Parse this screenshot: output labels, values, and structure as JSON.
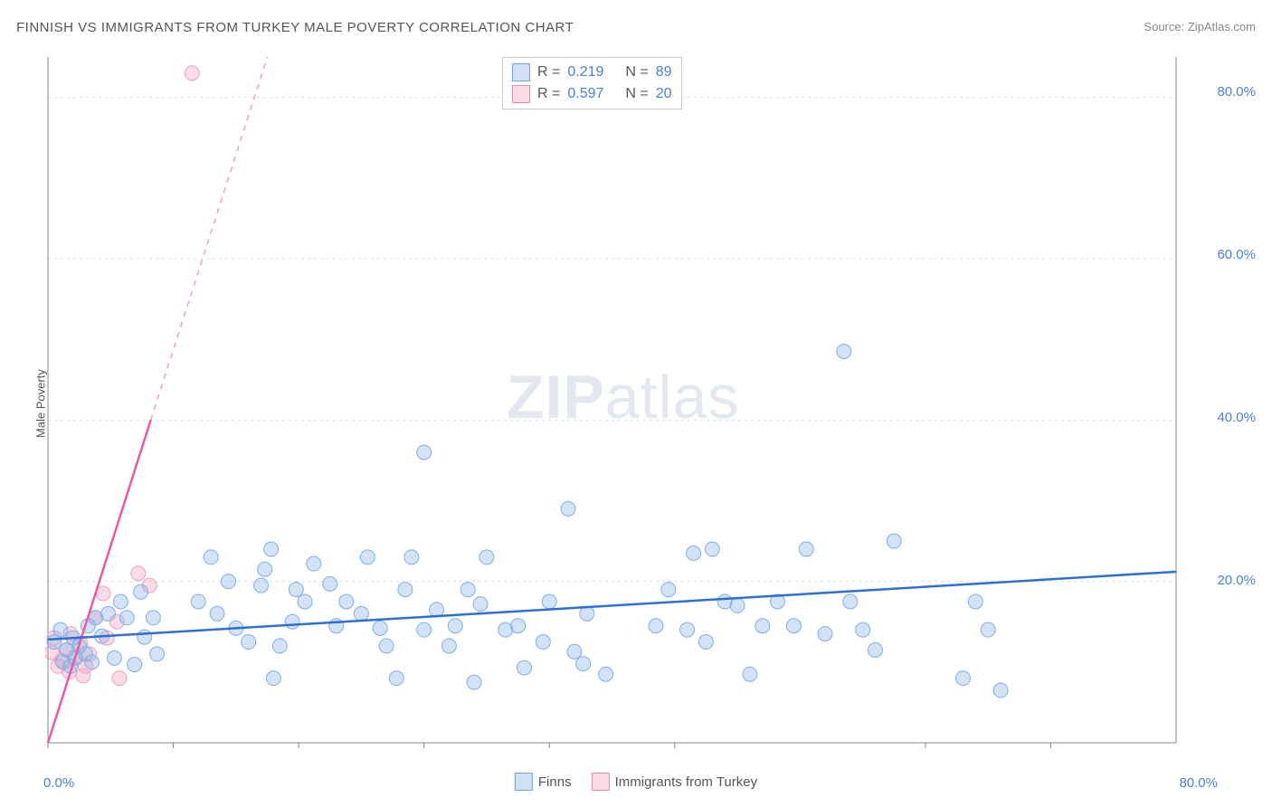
{
  "title": "FINNISH VS IMMIGRANTS FROM TURKEY MALE POVERTY CORRELATION CHART",
  "source_label": "Source:",
  "source_name": "ZipAtlas.com",
  "watermark_a": "ZIP",
  "watermark_b": "atlas",
  "y_axis_label": "Male Poverty",
  "chart": {
    "type": "scatter",
    "background_color": "#ffffff",
    "grid_color": "#dcdcdc",
    "axis_line_color": "#888888",
    "xlim": [
      0,
      90
    ],
    "ylim": [
      0,
      85
    ],
    "x_ticks": [
      0,
      10,
      20,
      30,
      40,
      50,
      70,
      80
    ],
    "x_tick_labels": {
      "0": "0.0%",
      "80": "80.0%"
    },
    "y_ticks": [
      20,
      40,
      60,
      80
    ],
    "y_tick_labels": {
      "20": "20.0%",
      "40": "40.0%",
      "60": "60.0%",
      "80": "80.0%"
    },
    "series": [
      {
        "name": "Finns",
        "color_fill": "rgba(140,180,230,0.38)",
        "color_stroke": "#7fb0e8",
        "marker_radius": 8,
        "trend_color": "#2d6fd6",
        "trend_width": 2.5,
        "trend_from": [
          0,
          12.8
        ],
        "trend_to": [
          90,
          21.2
        ],
        "R": "0.219",
        "N": "89",
        "points": [
          [
            0.5,
            12.5
          ],
          [
            1,
            14
          ],
          [
            1.2,
            10
          ],
          [
            1.5,
            11.5
          ],
          [
            1.8,
            9.5
          ],
          [
            2,
            13
          ],
          [
            2.2,
            10.5
          ],
          [
            2.5,
            12
          ],
          [
            3,
            11
          ],
          [
            3.2,
            14.5
          ],
          [
            3.5,
            10
          ],
          [
            3.8,
            15.5
          ],
          [
            4.3,
            13.2
          ],
          [
            4.8,
            16
          ],
          [
            5.3,
            10.5
          ],
          [
            5.8,
            17.5
          ],
          [
            6.3,
            15.5
          ],
          [
            6.9,
            9.7
          ],
          [
            7.4,
            18.7
          ],
          [
            7.7,
            13.1
          ],
          [
            8.4,
            15.5
          ],
          [
            8.7,
            11
          ],
          [
            12,
            17.5
          ],
          [
            13,
            23
          ],
          [
            13.5,
            16
          ],
          [
            14.4,
            20
          ],
          [
            15,
            14.2
          ],
          [
            16,
            12.5
          ],
          [
            17,
            19.5
          ],
          [
            17.3,
            21.5
          ],
          [
            17.8,
            24
          ],
          [
            18,
            8
          ],
          [
            18.5,
            12
          ],
          [
            19.5,
            15
          ],
          [
            19.8,
            19
          ],
          [
            20.5,
            17.5
          ],
          [
            21.2,
            22.2
          ],
          [
            22.5,
            19.7
          ],
          [
            23,
            14.5
          ],
          [
            23.8,
            17.5
          ],
          [
            25,
            16
          ],
          [
            25.5,
            23
          ],
          [
            26.5,
            14.2
          ],
          [
            27,
            12
          ],
          [
            27.8,
            8
          ],
          [
            28.5,
            19
          ],
          [
            29,
            23
          ],
          [
            30,
            14
          ],
          [
            30,
            36
          ],
          [
            31,
            16.5
          ],
          [
            32,
            12
          ],
          [
            32.5,
            14.5
          ],
          [
            33.5,
            19
          ],
          [
            34.5,
            17.2
          ],
          [
            34,
            7.5
          ],
          [
            35,
            23
          ],
          [
            36.5,
            14
          ],
          [
            37.5,
            14.5
          ],
          [
            38,
            9.3
          ],
          [
            39.5,
            12.5
          ],
          [
            40,
            17.5
          ],
          [
            41.5,
            29
          ],
          [
            42,
            11.3
          ],
          [
            42.7,
            9.8
          ],
          [
            43,
            16
          ],
          [
            44.5,
            8.5
          ],
          [
            48.5,
            14.5
          ],
          [
            49.5,
            19
          ],
          [
            51,
            14
          ],
          [
            51.5,
            23.5
          ],
          [
            52.5,
            12.5
          ],
          [
            53,
            24
          ],
          [
            54,
            17.5
          ],
          [
            55,
            17
          ],
          [
            56,
            8.5
          ],
          [
            57,
            14.5
          ],
          [
            58.2,
            17.5
          ],
          [
            59.5,
            14.5
          ],
          [
            60.5,
            24
          ],
          [
            62,
            13.5
          ],
          [
            63.5,
            48.5
          ],
          [
            64,
            17.5
          ],
          [
            65,
            14
          ],
          [
            66,
            11.5
          ],
          [
            67.5,
            25
          ],
          [
            73,
            8
          ],
          [
            74,
            17.5
          ],
          [
            75,
            14
          ],
          [
            76,
            6.5
          ]
        ]
      },
      {
        "name": "Immigrants from Turkey",
        "color_fill": "rgba(245,160,190,0.38)",
        "color_stroke": "#f0a0be",
        "marker_radius": 8,
        "trend_color": "#e85b9c",
        "trend_width": 2.5,
        "trend_from": [
          0,
          0
        ],
        "trend_to": [
          8.2,
          40
        ],
        "trend_dash_from": [
          8.2,
          40
        ],
        "trend_dash_to": [
          17.5,
          85
        ],
        "R": "0.597",
        "N": "20",
        "points": [
          [
            0.3,
            11.2
          ],
          [
            0.5,
            13
          ],
          [
            0.8,
            9.5
          ],
          [
            1.1,
            10.2
          ],
          [
            1.5,
            11.5
          ],
          [
            1.7,
            8.8
          ],
          [
            1.8,
            13.5
          ],
          [
            2.1,
            10.6
          ],
          [
            2.6,
            12.3
          ],
          [
            2.8,
            8.3
          ],
          [
            3.0,
            9.5
          ],
          [
            3.3,
            11
          ],
          [
            3.8,
            15.5
          ],
          [
            4.4,
            18.5
          ],
          [
            4.7,
            13
          ],
          [
            5.5,
            15
          ],
          [
            5.7,
            8
          ],
          [
            7.2,
            21
          ],
          [
            8.1,
            19.5
          ],
          [
            11.5,
            83
          ]
        ]
      }
    ]
  },
  "legend_top": {
    "r_label": "R =",
    "n_label": "N ="
  },
  "legend_bottom": {
    "finn_label": "Finns",
    "turk_label": "Immigrants from Turkey"
  }
}
